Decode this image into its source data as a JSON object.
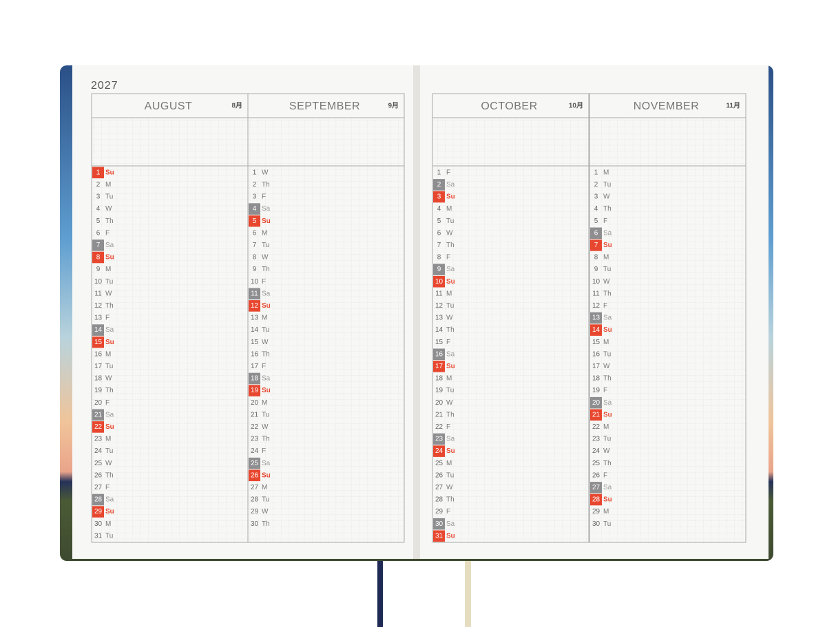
{
  "year": "2027",
  "months": [
    {
      "name": "AUGUST",
      "jp": "8月",
      "days": [
        1,
        2,
        3,
        4,
        5,
        6,
        7,
        8,
        9,
        10,
        11,
        12,
        13,
        14,
        15,
        16,
        17,
        18,
        19,
        20,
        21,
        22,
        23,
        24,
        25,
        26,
        27,
        28,
        29,
        30,
        31
      ],
      "weekdays": [
        "Su",
        "M",
        "Tu",
        "W",
        "Th",
        "F",
        "Sa",
        "Su",
        "M",
        "Tu",
        "W",
        "Th",
        "F",
        "Sa",
        "Su",
        "M",
        "Tu",
        "W",
        "Th",
        "F",
        "Sa",
        "Su",
        "M",
        "Tu",
        "W",
        "Th",
        "F",
        "Sa",
        "Su",
        "M",
        "Tu"
      ]
    },
    {
      "name": "SEPTEMBER",
      "jp": "9月",
      "days": [
        1,
        2,
        3,
        4,
        5,
        6,
        7,
        8,
        9,
        10,
        11,
        12,
        13,
        14,
        15,
        16,
        17,
        18,
        19,
        20,
        21,
        22,
        23,
        24,
        25,
        26,
        27,
        28,
        29,
        30
      ],
      "weekdays": [
        "W",
        "Th",
        "F",
        "Sa",
        "Su",
        "M",
        "Tu",
        "W",
        "Th",
        "F",
        "Sa",
        "Su",
        "M",
        "Tu",
        "W",
        "Th",
        "F",
        "Sa",
        "Su",
        "M",
        "Tu",
        "W",
        "Th",
        "F",
        "Sa",
        "Su",
        "M",
        "Tu",
        "W",
        "Th"
      ]
    },
    {
      "name": "OCTOBER",
      "jp": "10月",
      "days": [
        1,
        2,
        3,
        4,
        5,
        6,
        7,
        8,
        9,
        10,
        11,
        12,
        13,
        14,
        15,
        16,
        17,
        18,
        19,
        20,
        21,
        22,
        23,
        24,
        25,
        26,
        27,
        28,
        29,
        30,
        31
      ],
      "weekdays": [
        "F",
        "Sa",
        "Su",
        "M",
        "Tu",
        "W",
        "Th",
        "F",
        "Sa",
        "Su",
        "M",
        "Tu",
        "W",
        "Th",
        "F",
        "Sa",
        "Su",
        "M",
        "Tu",
        "W",
        "Th",
        "F",
        "Sa",
        "Su",
        "M",
        "Tu",
        "W",
        "Th",
        "F",
        "Sa",
        "Su"
      ]
    },
    {
      "name": "NOVEMBER",
      "jp": "11月",
      "days": [
        1,
        2,
        3,
        4,
        5,
        6,
        7,
        8,
        9,
        10,
        11,
        12,
        13,
        14,
        15,
        16,
        17,
        18,
        19,
        20,
        21,
        22,
        23,
        24,
        25,
        26,
        27,
        28,
        29,
        30
      ],
      "weekdays": [
        "M",
        "Tu",
        "W",
        "Th",
        "F",
        "Sa",
        "Su",
        "M",
        "Tu",
        "W",
        "Th",
        "F",
        "Sa",
        "Su",
        "M",
        "Tu",
        "W",
        "Th",
        "F",
        "Sa",
        "Su",
        "M",
        "Tu",
        "W",
        "Th",
        "F",
        "Sa",
        "Su",
        "M",
        "Tu"
      ]
    }
  ]
}
